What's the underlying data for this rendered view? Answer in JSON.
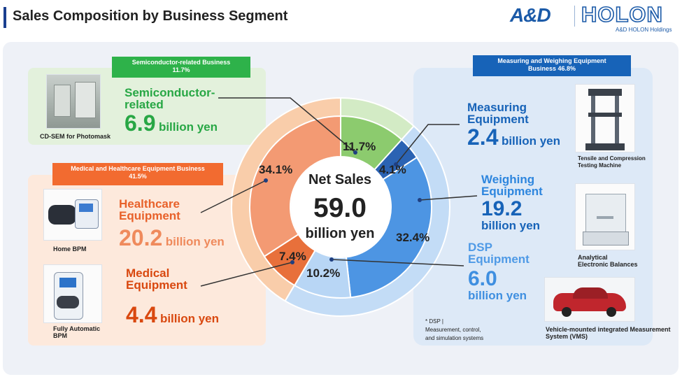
{
  "header": {
    "title": "Sales Composition by Business Segment",
    "logo_left": "A&D",
    "logo_right": "HOLON",
    "logo_sub": "A&D HOLON Holdings"
  },
  "colors": {
    "semi_dark": "#8ccb6e",
    "semi_light": "#d3ebc5",
    "semi_tag": "#2eb24a",
    "health_dark": "#f39a73",
    "health_light": "#f9cdaa",
    "health_tag": "#f26b30",
    "medical_dark": "#e8703b",
    "meas_dark": "#2b63b3",
    "weigh_dark": "#4d95e3",
    "dsp_dark": "#b8d6f5",
    "meas_light": "#c3dcf6",
    "meas_tag": "#1763b8",
    "orange_text": "#e8612a",
    "green_text": "#28a745",
    "blue_text": "#1763b8",
    "lightblue_text": "#3f8fe0"
  },
  "center": {
    "title": "Net Sales",
    "value": "59.0",
    "unit": "billion yen"
  },
  "chart_data": {
    "type": "pie",
    "title": "Net Sales 59.0 billion yen",
    "outer_ring": {
      "unit": "%",
      "series": [
        {
          "name": "Semiconductor-related Business",
          "value": 11.7
        },
        {
          "name": "Measuring and Weighing Equipment Business",
          "value": 46.8
        },
        {
          "name": "Medical and Healthcare Equipment Business",
          "value": 41.5
        }
      ]
    },
    "inner_ring": {
      "unit": "%",
      "series": [
        {
          "name": "Semiconductor-related",
          "value": 11.7,
          "label": "11.7%"
        },
        {
          "name": "Measuring Equipment",
          "value": 4.1,
          "label": "4.1%"
        },
        {
          "name": "Weighing Equipment",
          "value": 32.4,
          "label": "32.4%"
        },
        {
          "name": "DSP Equipment",
          "value": 10.2,
          "label": "10.2%"
        },
        {
          "name": "Medical Equipment",
          "value": 7.4,
          "label": "7.4%"
        },
        {
          "name": "Healthcare Equipment",
          "value": 34.1,
          "label": "34.1%"
        }
      ]
    },
    "sales_billion_yen": {
      "Semiconductor-related": 6.9,
      "Measuring Equipment": 2.4,
      "Weighing Equipment": 19.2,
      "DSP Equipment": 6.0,
      "Healthcare Equipment": 20.2,
      "Medical Equipment": 4.4
    }
  },
  "semi": {
    "tag_line1": "Semiconductor-related Business",
    "tag_line2": "11.7%",
    "name_line1": "Semiconductor-",
    "name_line2": "related",
    "value": "6.9",
    "unit": "billion yen",
    "photo_caption": "CD-SEM for Photomask"
  },
  "medical": {
    "tag_line1": "Medical and Healthcare Equipment Business",
    "tag_line2": "41.5%",
    "health_line1": "Healthcare",
    "health_line2": "Equipment",
    "health_value": "20.2",
    "health_unit": "billion yen",
    "med_line1": "Medical",
    "med_line2": "Equipment",
    "med_value": "4.4",
    "med_unit": "billion yen",
    "photo1_caption": "Home BPM",
    "photo2_caption_line1": "Fully Automatic",
    "photo2_caption_line2": "BPM"
  },
  "measuring": {
    "tag_line1": "Measuring and Weighing  Equipment",
    "tag_line2": "Business   46.8%",
    "meas_line1": "Measuring",
    "meas_line2": "Equipment",
    "meas_value": "2.4",
    "meas_unit": "billion yen",
    "weigh_line1": "Weighing",
    "weigh_line2": "Equipment",
    "weigh_value": "19.2",
    "weigh_unit": "billion yen",
    "dsp_line1": "DSP",
    "dsp_line2": "Equipment",
    "dsp_value": "6.0",
    "dsp_unit": "billion yen",
    "photo1_caption_line1": "Tensile and Compression",
    "photo1_caption_line2": "Testing Machine",
    "photo2_caption_line1": "Analytical",
    "photo2_caption_line2": "Electronic Balances",
    "photo3_caption_line1": "Vehicle-mounted integrated Measurement",
    "photo3_caption_line2": "System (VMS)",
    "note_line1": "* DSP |",
    "note_line2": "Measurement, control,",
    "note_line3": "and simulation systems"
  }
}
